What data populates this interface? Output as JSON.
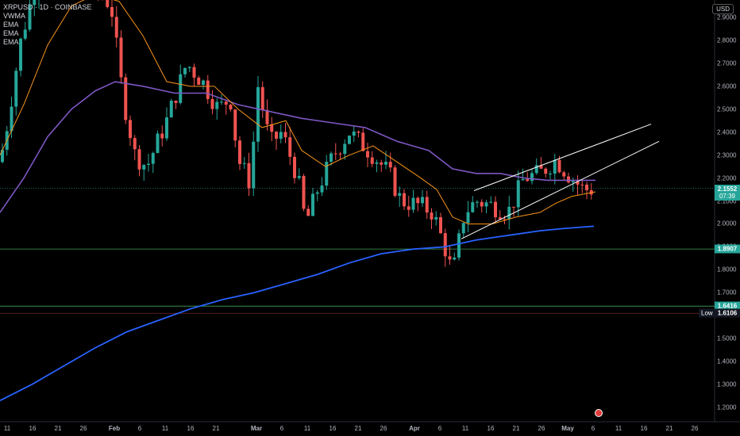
{
  "header": {
    "symbol": "XRPUSD · 1D · COINBASE",
    "indicators": [
      "VWMA",
      "EMA",
      "EMA",
      "EMA"
    ],
    "currency": "USD"
  },
  "chart_data": {
    "type": "candlestick",
    "y_ticks": [
      "2.9000",
      "2.8000",
      "2.7000",
      "2.6000",
      "2.5000",
      "2.4000",
      "2.3000",
      "2.2000",
      "2.1000",
      "2.0000",
      "1.9000",
      "1.8000",
      "1.7000",
      "1.6000",
      "1.5000",
      "1.4000",
      "1.3000",
      "1.2000"
    ],
    "x_ticks": [
      "11",
      "16",
      "21",
      "26",
      "Feb",
      "6",
      "11",
      "16",
      "21",
      "Mar",
      "6",
      "11",
      "16",
      "21",
      "26",
      "Apr",
      "6",
      "11",
      "16",
      "21",
      "26",
      "May",
      "6",
      "11",
      "16",
      "21",
      "26"
    ],
    "price_levels": [
      {
        "label": "2.1552",
        "sub": "07:39",
        "value": 2.1552,
        "color": "#26a69a"
      },
      {
        "label": "1.8907",
        "value": 1.8907,
        "color": "#26a69a"
      },
      {
        "label": "1.6416",
        "value": 1.6416,
        "color": "#26a69a"
      },
      {
        "label": "1.6106",
        "value": 1.6106,
        "color": "#131722",
        "prefix": "Low"
      }
    ],
    "colors": {
      "up": "#26a69a",
      "down": "#ef5350",
      "vwma": "#7e57c2",
      "ema_short": "#f7931a",
      "ema_long": "#2962ff",
      "trendline": "#ffffff"
    }
  }
}
